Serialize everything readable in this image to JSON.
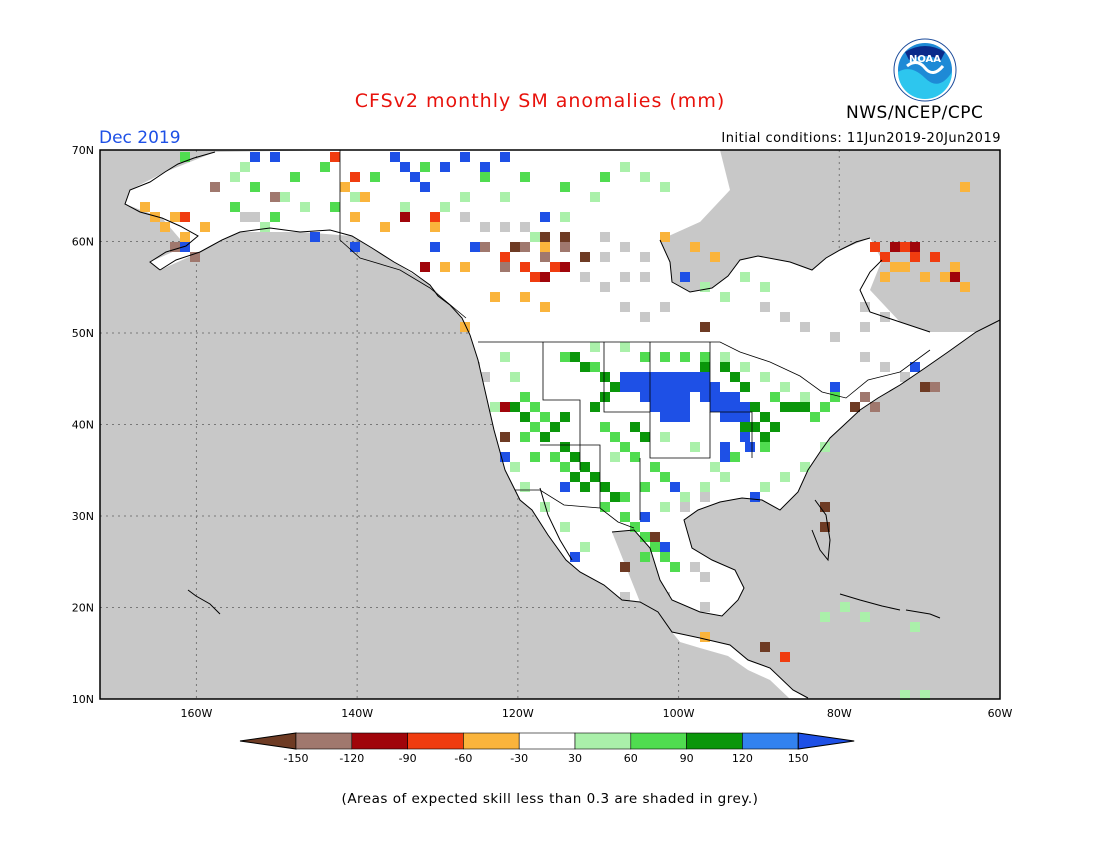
{
  "title": "CFSv2 monthly SM anomalies (mm)",
  "valid_month": "Dec 2019",
  "initial_conditions": "Initial conditions: 11Jun2019-20Jun2019",
  "agency": "NWS/NCEP/CPC",
  "logo_text": "NOAA",
  "footnote": "(Areas of expected skill less than 0.3 are shaded in grey.)",
  "axes": {
    "lat_labels": [
      "70N",
      "60N",
      "50N",
      "40N",
      "30N",
      "20N",
      "10N"
    ],
    "lon_labels": [
      "160W",
      "140W",
      "120W",
      "100W",
      "80W",
      "60W"
    ],
    "lat_range": [
      10,
      70
    ],
    "lon_range": [
      -172,
      -60
    ],
    "grid": true
  },
  "legend": {
    "tick_labels": [
      "-150",
      "-120",
      "-90",
      "-60",
      "-30",
      "30",
      "60",
      "90",
      "120",
      "150"
    ],
    "colors": [
      "#6e3b24",
      "#a0786e",
      "#a0050a",
      "#f03c0f",
      "#fab43c",
      "#ffffff",
      "#aaf0aa",
      "#50dc50",
      "#0a960a",
      "#3282f0",
      "#1e50e6"
    ]
  },
  "colors": {
    "skill_mask_grey": "#c8c8c8",
    "title_red": "#e8120c",
    "month_blue": "#1e50e6"
  }
}
